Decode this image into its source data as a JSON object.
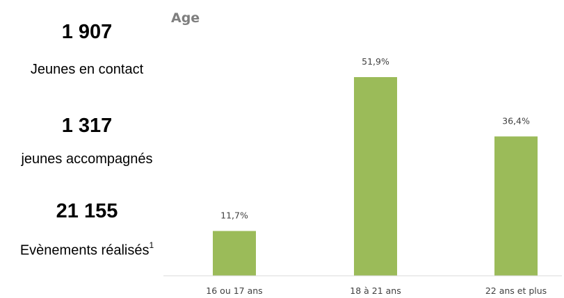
{
  "stats": [
    {
      "value": "1 907",
      "label": "Jeunes en contact",
      "sup": ""
    },
    {
      "value": "1 317",
      "label": "jeunes accompagnés",
      "sup": ""
    },
    {
      "value": "21 155",
      "label": "Evènements réalisés",
      "sup": "1"
    }
  ],
  "chart_data": {
    "type": "bar",
    "title": "Age",
    "categories": [
      "16 ou 17 ans",
      "18 à 21 ans",
      "22 ans et plus"
    ],
    "values": [
      11.7,
      51.9,
      36.4
    ],
    "value_labels": [
      "11,7%",
      "51,9%",
      "36,4%"
    ],
    "ylim": [
      0,
      55
    ],
    "xlabel": "",
    "ylabel": "",
    "grid": false,
    "bar_color": "#9bbb59",
    "axis_color": "#d9d9d9"
  }
}
